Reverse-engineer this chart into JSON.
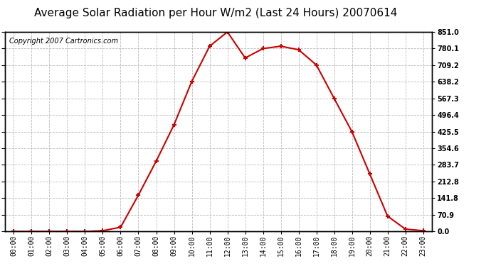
{
  "title": "Average Solar Radiation per Hour W/m2 (Last 24 Hours) 20070614",
  "copyright": "Copyright 2007 Cartronics.com",
  "hours": [
    "00:00",
    "01:00",
    "02:00",
    "03:00",
    "04:00",
    "05:00",
    "06:00",
    "07:00",
    "08:00",
    "09:00",
    "10:00",
    "11:00",
    "12:00",
    "13:00",
    "14:00",
    "15:00",
    "16:00",
    "17:00",
    "18:00",
    "19:00",
    "20:00",
    "21:00",
    "22:00",
    "23:00"
  ],
  "values": [
    0.0,
    0.0,
    0.0,
    0.0,
    0.0,
    3.0,
    18.0,
    155.0,
    300.0,
    455.0,
    640.0,
    790.0,
    851.0,
    740.0,
    780.0,
    790.0,
    775.0,
    710.0,
    567.0,
    425.0,
    245.0,
    65.0,
    10.0,
    3.0
  ],
  "line_color": "#cc0000",
  "marker": "+",
  "marker_size": 5,
  "marker_edge_width": 1.5,
  "line_width": 1.5,
  "bg_color": "#ffffff",
  "grid_color": "#bbbbbb",
  "ytick_labels": [
    0.0,
    70.9,
    141.8,
    212.8,
    283.7,
    354.6,
    425.5,
    496.4,
    567.3,
    638.2,
    709.2,
    780.1,
    851.0
  ],
  "ymax": 851.0,
  "ymin": 0.0,
  "title_fontsize": 11,
  "copyright_fontsize": 7,
  "tick_fontsize": 7,
  "border_color": "#000000"
}
